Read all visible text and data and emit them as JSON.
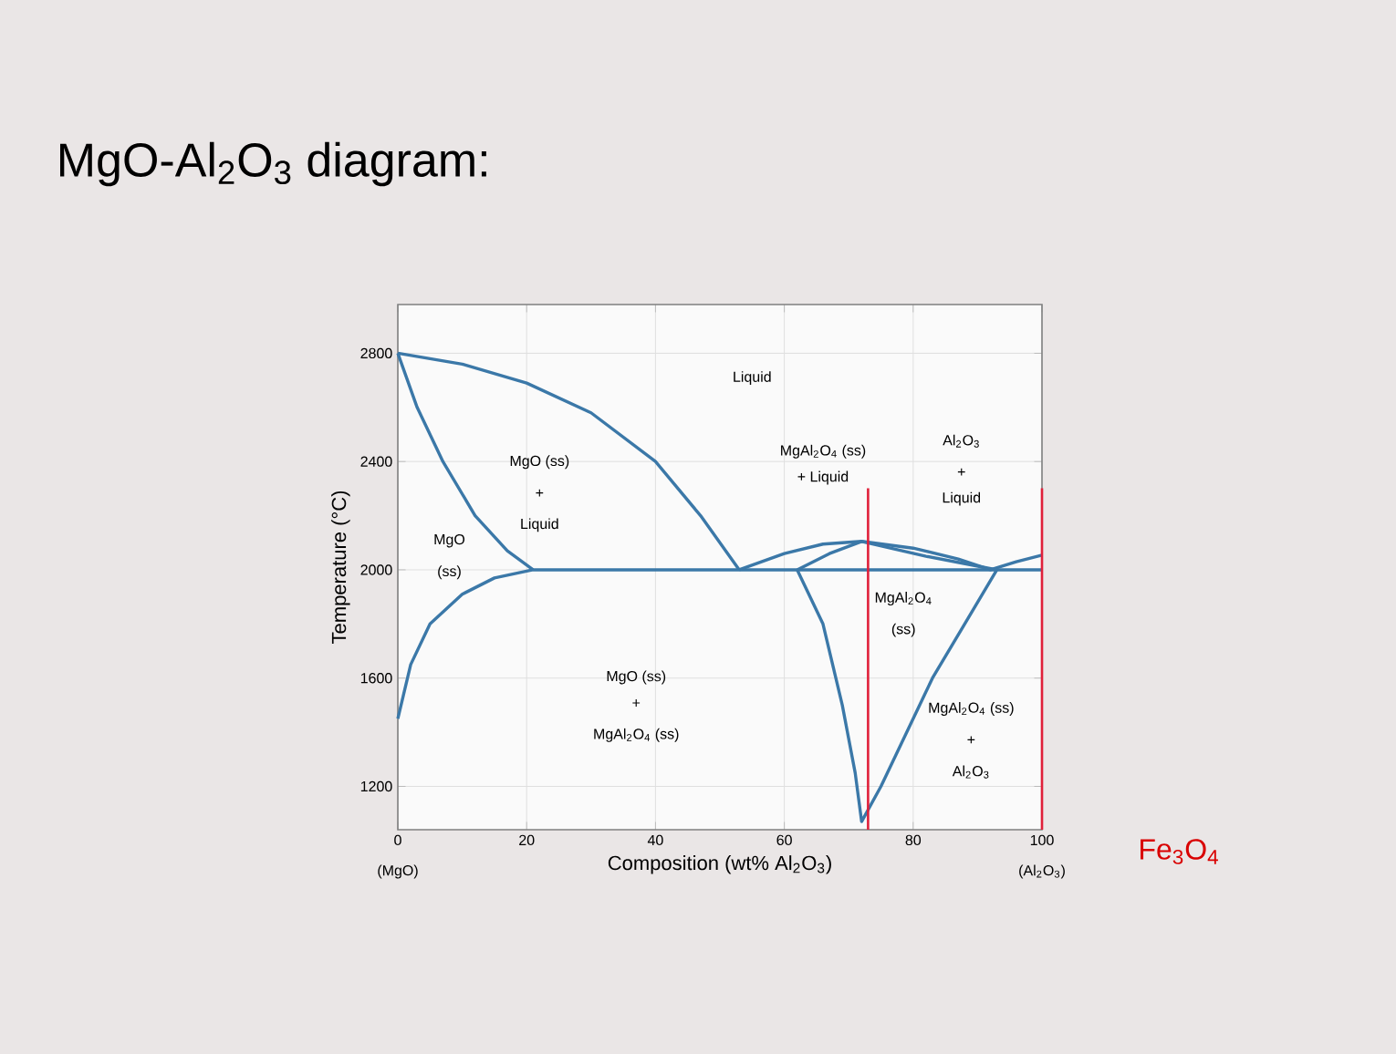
{
  "chart_data": {
    "type": "line",
    "title": "MgO-Al$_{2}$O$_{3}$ diagram:",
    "xlabel": "Composition (wt% Al$_{2}$O$_{3}$)",
    "ylabel": "Temperature (°C)",
    "xlim": [
      0,
      100
    ],
    "ylim": [
      1040,
      2980
    ],
    "xticks": [
      0,
      20,
      40,
      60,
      80,
      100
    ],
    "yticks": [
      1200,
      1600,
      2000,
      2400,
      2800
    ],
    "grid": true,
    "marker": "none",
    "line_style": "solid",
    "series": [
      {
        "color": "#3b78a8",
        "x": [
          0,
          10,
          20,
          30,
          40,
          47,
          53
        ],
        "values": [
          2800,
          2760,
          2690,
          2580,
          2400,
          2200,
          2000
        ]
      },
      {
        "color": "#3b78a8",
        "x": [
          0,
          3,
          7,
          12,
          17,
          21
        ],
        "values": [
          2800,
          2600,
          2400,
          2200,
          2070,
          2000
        ]
      },
      {
        "color": "#3b78a8",
        "x": [
          0,
          2,
          5,
          10,
          15,
          21,
          100
        ],
        "values": [
          1450,
          1650,
          1800,
          1910,
          1970,
          2000,
          2000
        ]
      },
      {
        "color": "#3b78a8",
        "x": [
          53,
          60,
          66,
          72,
          80,
          87,
          92,
          96,
          100
        ],
        "values": [
          2000,
          2060,
          2095,
          2105,
          2080,
          2040,
          2000,
          2030,
          2054
        ]
      },
      {
        "color": "#3b78a8",
        "x": [
          62,
          67,
          72,
          82,
          93
        ],
        "values": [
          2000,
          2060,
          2105,
          2050,
          2000
        ]
      },
      {
        "color": "#3b78a8",
        "x": [
          62,
          66,
          69,
          71,
          72,
          75,
          79,
          83,
          88,
          93
        ],
        "values": [
          2000,
          1800,
          1500,
          1250,
          1070,
          1200,
          1400,
          1600,
          1800,
          2000
        ]
      }
    ],
    "ref_lines": [
      {
        "axis": "x",
        "value": 73,
        "color": "#e0203a"
      },
      {
        "axis": "x",
        "value": 100,
        "color": "#e0203a"
      }
    ],
    "annotations": [
      "(MgO)",
      "(Al$_{2}$O$_{3}$)",
      "Fe$_{3}$O$_{4}$",
      "Liquid",
      "MgO (ss)",
      "+",
      "Liquid",
      "MgO",
      "(ss)",
      "MgO (ss)",
      "+",
      "MgAl$_{2}$O$_{4}$ (ss)",
      "MgAl$_{2}$O$_{4}$ (ss)",
      "+ Liquid",
      "Al$_{2}$O$_{3}$",
      "+",
      "Liquid",
      "MgAl$_{2}$O$_{4}$",
      "(ss)",
      "MgAl$_{2}$O$_{4}$ (ss)",
      "+",
      "Al$_{2}$O$_{3}$"
    ]
  }
}
